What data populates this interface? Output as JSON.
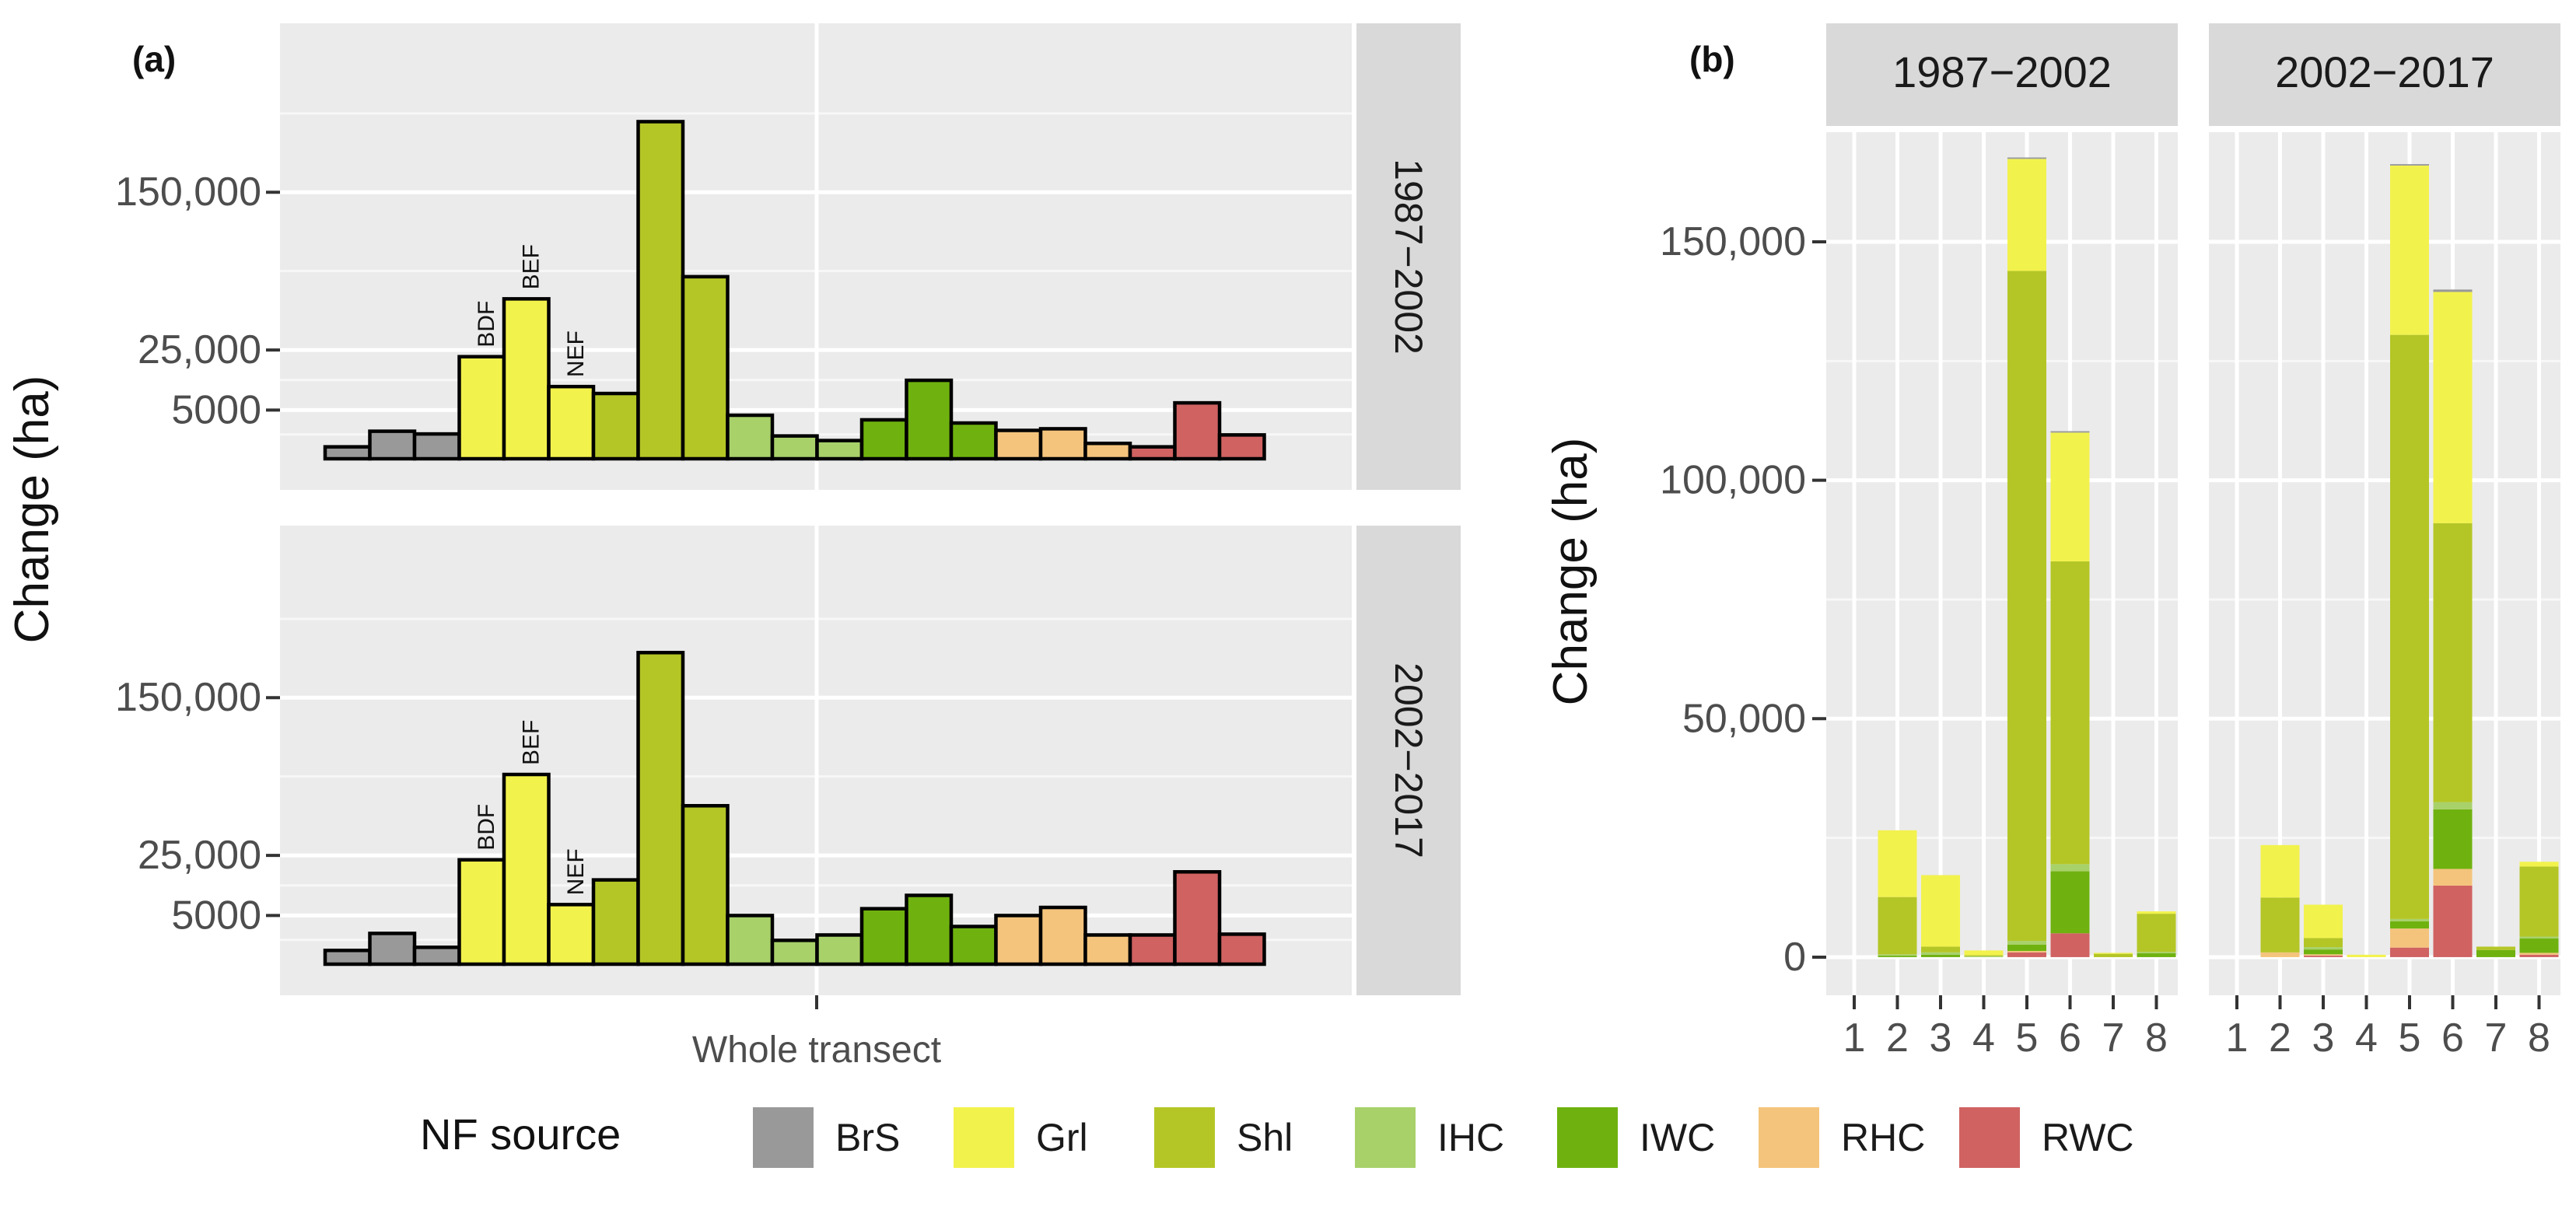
{
  "figure": {
    "panel_a_label": "(a)",
    "panel_b_label": "(b)"
  },
  "legend": {
    "title": "NF source",
    "items": [
      {
        "label": "BrS",
        "color": "#999999"
      },
      {
        "label": "Grl",
        "color": "#f2f24d"
      },
      {
        "label": "Shl",
        "color": "#b4c626"
      },
      {
        "label": "IHC",
        "color": "#a8d16a"
      },
      {
        "label": "IWC",
        "color": "#6fb20f"
      },
      {
        "label": "RHC",
        "color": "#f4c47c"
      },
      {
        "label": "RWC",
        "color": "#d06262"
      }
    ]
  },
  "chart_data": [
    {
      "type": "bar",
      "panel": "(a)",
      "title": "",
      "xlabel": "Whole transect",
      "ylabel": "Change (ha)",
      "y_scale": "sqrt",
      "y_ticks": [
        5000,
        25000,
        150000
      ],
      "y_tick_labels": [
        "5000",
        "25,000",
        "150,000"
      ],
      "annotations": [
        "BDF",
        "BEF",
        "NEF"
      ],
      "bar_sources": [
        "BrS",
        "BrS",
        "BrS",
        "Grl",
        "Grl",
        "Grl",
        "Shl",
        "Shl",
        "Shl",
        "IHC",
        "IHC",
        "IHC",
        "IWC",
        "IWC",
        "IWC",
        "RHC",
        "RHC",
        "RHC",
        "RWC",
        "RWC",
        "RWC"
      ],
      "facets": [
        {
          "label": "1987−2002",
          "values": [
            300,
            1600,
            1300,
            22000,
            54000,
            11000,
            9000,
            240000,
            70000,
            4000,
            1100,
            700,
            3200,
            13000,
            2700,
            1700,
            1900,
            500,
            300,
            6600,
            1200
          ]
        },
        {
          "label": "2002−2017",
          "values": [
            400,
            2000,
            600,
            23000,
            76000,
            7500,
            15000,
            205000,
            53000,
            5000,
            1200,
            1800,
            6500,
            10000,
            3000,
            5000,
            6800,
            1800,
            1800,
            18000,
            1900
          ]
        }
      ]
    },
    {
      "type": "bar",
      "panel": "(b)",
      "stacked": true,
      "xlabel": "",
      "ylabel": "Change (ha)",
      "ylim": [
        -8000,
        173000
      ],
      "y_ticks": [
        0,
        50000,
        100000,
        150000
      ],
      "y_tick_labels": [
        "0",
        "50,000",
        "100,000",
        "150,000"
      ],
      "categories": [
        "1",
        "2",
        "3",
        "4",
        "5",
        "6",
        "7",
        "8"
      ],
      "series_names": [
        "RWC",
        "RHC",
        "IWC",
        "IHC",
        "Shl",
        "Grl",
        "BrS"
      ],
      "facets": [
        {
          "label": "1987−2002",
          "stacks": [
            [
              0,
              0,
              0,
              0,
              0,
              0,
              0
            ],
            [
              0,
              0,
              300,
              300,
              12000,
              14000,
              0
            ],
            [
              0,
              0,
              500,
              500,
              1200,
              15000,
              0
            ],
            [
              0,
              0,
              0,
              200,
              200,
              1000,
              0
            ],
            [
              1000,
              300,
              1300,
              800,
              140500,
              23500,
              300
            ],
            [
              5000,
              0,
              13000,
              1500,
              63500,
              27000,
              300
            ],
            [
              0,
              0,
              0,
              0,
              700,
              200,
              0
            ],
            [
              0,
              0,
              800,
              300,
              8000,
              500,
              0
            ]
          ]
        },
        {
          "label": "2002−2017",
          "stacks": [
            [
              0,
              0,
              0,
              0,
              0,
              0,
              0
            ],
            [
              0,
              1000,
              0,
              0,
              11500,
              11000,
              0
            ],
            [
              300,
              300,
              1000,
              500,
              1900,
              7000,
              0
            ],
            [
              0,
              0,
              0,
              0,
              0,
              500,
              0
            ],
            [
              2000,
              4000,
              1500,
              500,
              122500,
              35500,
              300
            ],
            [
              15000,
              3500,
              12500,
              1500,
              58500,
              48500,
              500
            ],
            [
              0,
              0,
              1500,
              0,
              700,
              0,
              0
            ],
            [
              500,
              400,
              3000,
              400,
              14700,
              1000,
              0
            ]
          ]
        }
      ]
    }
  ]
}
